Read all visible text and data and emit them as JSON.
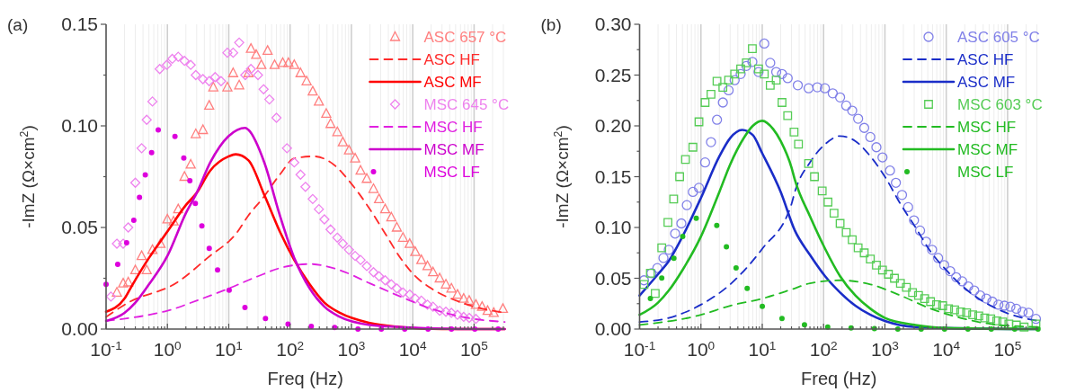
{
  "chart_data": [
    {
      "type": "line",
      "title": "(a)",
      "xlabel": "Freq (Hz)",
      "ylabel": "-ImZ (Ω×cm$^{2}$)",
      "log": "x",
      "grid": "x",
      "legend": "top right",
      "xlim": [
        0.1,
        316000
      ],
      "ylim": [
        0,
        0.15
      ],
      "xticks": [
        {
          "value": 0.1,
          "label": "10$^{-1}$"
        },
        {
          "value": 0.2,
          "label": null
        },
        {
          "value": 0.3,
          "label": null
        },
        {
          "value": 0.4,
          "label": null
        },
        {
          "value": 0.5,
          "label": null
        },
        {
          "value": 0.6,
          "label": null
        },
        {
          "value": 0.7,
          "label": null
        },
        {
          "value": 0.8,
          "label": null
        },
        {
          "value": 0.9,
          "label": null
        },
        {
          "value": 1,
          "label": "10$^{0}$"
        },
        {
          "value": 2,
          "label": null
        },
        {
          "value": 3,
          "label": null
        },
        {
          "value": 4,
          "label": null
        },
        {
          "value": 5,
          "label": null
        },
        {
          "value": 6,
          "label": null
        },
        {
          "value": 7,
          "label": null
        },
        {
          "value": 8,
          "label": null
        },
        {
          "value": 9,
          "label": null
        },
        {
          "value": 10,
          "label": "10$^{1}$"
        },
        {
          "value": 20,
          "label": null
        },
        {
          "value": 30,
          "label": null
        },
        {
          "value": 40,
          "label": null
        },
        {
          "value": 50,
          "label": null
        },
        {
          "value": 60,
          "label": null
        },
        {
          "value": 70,
          "label": null
        },
        {
          "value": 80,
          "label": null
        },
        {
          "value": 90,
          "label": null
        },
        {
          "value": 100,
          "label": "10$^{2}$"
        },
        {
          "value": 200,
          "label": null
        },
        {
          "value": 300,
          "label": null
        },
        {
          "value": 400,
          "label": null
        },
        {
          "value": 500,
          "label": null
        },
        {
          "value": 600,
          "label": null
        },
        {
          "value": 700,
          "label": null
        },
        {
          "value": 800,
          "label": null
        },
        {
          "value": 900,
          "label": null
        },
        {
          "value": 1000,
          "label": "10$^{3}$"
        },
        {
          "value": 2000,
          "label": null
        },
        {
          "value": 3000,
          "label": null
        },
        {
          "value": 4000,
          "label": null
        },
        {
          "value": 5000,
          "label": null
        },
        {
          "value": 6000,
          "label": null
        },
        {
          "value": 7000,
          "label": null
        },
        {
          "value": 8000,
          "label": null
        },
        {
          "value": 9000,
          "label": null
        },
        {
          "value": 10000,
          "label": "10$^{4}$"
        },
        {
          "value": 20000,
          "label": null
        },
        {
          "value": 30000,
          "label": null
        },
        {
          "value": 40000,
          "label": null
        },
        {
          "value": 50000,
          "label": null
        },
        {
          "value": 60000,
          "label": null
        },
        {
          "value": 70000,
          "label": null
        },
        {
          "value": 80000,
          "label": null
        },
        {
          "value": 90000,
          "label": null
        },
        {
          "value": 100000,
          "label": "10$^{5}$"
        },
        {
          "value": 200000,
          "label": null
        },
        {
          "value": 300000,
          "label": null
        }
      ],
      "yticks": [
        {
          "value": 0,
          "label": "0.00"
        },
        {
          "value": 0.025,
          "label": null
        },
        {
          "value": 0.05,
          "label": "0.05"
        },
        {
          "value": 0.075,
          "label": null
        },
        {
          "value": 0.1,
          "label": "0.10"
        },
        {
          "value": 0.125,
          "label": null
        },
        {
          "value": 0.15,
          "label": "0.15"
        }
      ],
      "series": [
        {
          "name": "ASC 657 °C",
          "type": "scatter",
          "marker": "triangle",
          "color": "#ff7f7f",
          "x": [
            0.15,
            0.19,
            0.23,
            0.3,
            0.38,
            0.46,
            0.57,
            0.77,
            1.0,
            1.26,
            1.5,
            1.9,
            2.4,
            2.9,
            3.8,
            4.8,
            5.6,
            9.5,
            11.8,
            14.8,
            21,
            23,
            28,
            34,
            43,
            56,
            76,
            94,
            117,
            148,
            186,
            234,
            295,
            389,
            457,
            589,
            724,
            912,
            1150,
            1410,
            1780,
            2290,
            2820,
            3550,
            4470,
            5500,
            6920,
            8910,
            11000,
            13800,
            17400,
            21400,
            27500,
            34700,
            42700,
            53700,
            67600,
            83200,
            107000,
            135000,
            166000,
            209000,
            295000
          ],
          "values": [
            0.018,
            0.0225,
            0.023,
            0.029,
            0.036,
            0.029,
            0.039,
            0.042,
            0.054,
            0.053,
            0.059,
            0.075,
            0.081,
            0.096,
            0.098,
            0.11,
            0.119,
            0.119,
            0.126,
            0.12,
            0.126,
            0.138,
            0.135,
            0.13,
            0.137,
            0.13,
            0.131,
            0.131,
            0.13,
            0.126,
            0.122,
            0.117,
            0.112,
            0.106,
            0.101,
            0.097,
            0.092,
            0.088,
            0.084,
            0.078,
            0.074,
            0.069,
            0.064,
            0.059,
            0.055,
            0.05,
            0.045,
            0.042,
            0.038,
            0.034,
            0.031,
            0.028,
            0.025,
            0.022,
            0.02,
            0.017,
            0.015,
            0.014,
            0.012,
            0.011,
            0.009,
            0.008,
            0.01
          ]
        },
        {
          "name": "ASC HF",
          "type": "line",
          "line_style": "dashed",
          "color": "#ff2a2a",
          "x": [
            0.1,
            0.23,
            1.45,
            4.5,
            14,
            21,
            35,
            68,
            117,
            245,
            513,
            912,
            2000,
            3550,
            6300,
            11000,
            20000,
            63000,
            316000
          ],
          "values": [
            0.006,
            0.013,
            0.023,
            0.035,
            0.048,
            0.056,
            0.064,
            0.076,
            0.084,
            0.085,
            0.081,
            0.073,
            0.059,
            0.047,
            0.035,
            0.026,
            0.02,
            0.013,
            0.008
          ]
        },
        {
          "name": "ASC MF",
          "type": "line",
          "line_style": "solid",
          "color": "#ff0000",
          "x": [
            0.1,
            0.2,
            0.26,
            0.5,
            1,
            2,
            3,
            5,
            10,
            13,
            21,
            38,
            68,
            117,
            209,
            363,
            646,
            2000,
            6300,
            30000,
            316000
          ],
          "values": [
            0.0085,
            0.015,
            0.021,
            0.035,
            0.048,
            0.061,
            0.067,
            0.078,
            0.085,
            0.086,
            0.083,
            0.066,
            0.048,
            0.034,
            0.022,
            0.013,
            0.008,
            0.003,
            0.001,
            0,
            0
          ]
        },
        {
          "name": "MSC 645 °C",
          "type": "scatter",
          "marker": "diamond",
          "color": "#ee82ee",
          "x": [
            0.12,
            0.15,
            0.19,
            0.23,
            0.3,
            0.38,
            0.46,
            0.57,
            0.75,
            0.98,
            1.2,
            1.5,
            1.9,
            2.4,
            2.9,
            3.8,
            4.8,
            6.0,
            7.5,
            9.5,
            11.8,
            14.8,
            18.6,
            23,
            30,
            37,
            46,
            60,
            89,
            117,
            148,
            178,
            234,
            295,
            363,
            457,
            589,
            724,
            912,
            1150,
            1410,
            1780,
            2290,
            2820,
            3550,
            4470,
            5500,
            6920,
            8910,
            11000,
            13800,
            17400,
            21400,
            27500,
            34700,
            42700,
            53700,
            67600,
            83200,
            107000
          ],
          "values": [
            0.016,
            0.042,
            0.042,
            0.05,
            0.072,
            0.089,
            0.103,
            0.112,
            0.128,
            0.13,
            0.133,
            0.134,
            0.132,
            0.13,
            0.125,
            0.123,
            0.122,
            0.124,
            0.122,
            0.136,
            0.136,
            0.141,
            0.125,
            0.128,
            0.125,
            0.118,
            0.113,
            0.104,
            0.089,
            0.082,
            0.076,
            0.07,
            0.064,
            0.059,
            0.054,
            0.049,
            0.045,
            0.042,
            0.039,
            0.036,
            0.034,
            0.031,
            0.028,
            0.026,
            0.024,
            0.022,
            0.02,
            0.018,
            0.017,
            0.015,
            0.014,
            0.012,
            0.011,
            0.009,
            0.0085,
            0.008,
            0.007,
            0.006,
            0.0055,
            0.005
          ]
        },
        {
          "name": "MSC HF",
          "type": "line",
          "line_style": "dashed",
          "color": "#e020e0",
          "x": [
            0.1,
            0.5,
            1,
            3,
            10,
            30,
            68,
            209,
            646,
            2000,
            6300,
            20000,
            63000,
            316000
          ],
          "values": [
            0.004,
            0.007,
            0.009,
            0.014,
            0.02,
            0.026,
            0.03,
            0.032,
            0.029,
            0.0225,
            0.016,
            0.01,
            0.006,
            0.0035
          ]
        },
        {
          "name": "MSC MF",
          "type": "line",
          "line_style": "solid",
          "color": "#cc00cc",
          "x": [
            0.1,
            0.2,
            0.3,
            0.5,
            1,
            2,
            3,
            5,
            10,
            18.6,
            21,
            38,
            68,
            117,
            209,
            363,
            646,
            2000,
            6300,
            100000,
            316000
          ],
          "values": [
            0.004,
            0.008,
            0.013,
            0.022,
            0.036,
            0.057,
            0.067,
            0.082,
            0.095,
            0.099,
            0.098,
            0.082,
            0.056,
            0.035,
            0.02,
            0.011,
            0.006,
            0.002,
            0.001,
            0,
            0
          ]
        },
        {
          "name": "MSC LF",
          "type": "line",
          "line_style": "dotted",
          "color": "#dd00dd",
          "x": [
            0.1,
            0.19,
            0.28,
            0.38,
            0.52,
            0.8,
            1.5,
            2.15,
            2.9,
            4.2,
            6.6,
            13,
            35,
            117,
            400,
            1600,
            10000,
            316000
          ],
          "values": [
            0.022,
            0.038,
            0.053,
            0.069,
            0.084,
            0.1,
            0.092,
            0.077,
            0.061,
            0.045,
            0.029,
            0.015,
            0.006,
            0.002,
            0.001,
            0,
            0,
            0
          ]
        }
      ]
    },
    {
      "type": "line",
      "title": "(b)",
      "xlabel": "Freq (Hz)",
      "ylabel": "-ImZ (Ω×cm$^{2}$)",
      "log": "x",
      "grid": "x",
      "legend": "top right",
      "xlim": [
        0.1,
        316000
      ],
      "ylim": [
        0,
        0.3
      ],
      "xticks": [
        {
          "value": 0.1,
          "label": "10$^{-1}$"
        },
        {
          "value": 0.2,
          "label": null
        },
        {
          "value": 0.3,
          "label": null
        },
        {
          "value": 0.4,
          "label": null
        },
        {
          "value": 0.5,
          "label": null
        },
        {
          "value": 0.6,
          "label": null
        },
        {
          "value": 0.7,
          "label": null
        },
        {
          "value": 0.8,
          "label": null
        },
        {
          "value": 0.9,
          "label": null
        },
        {
          "value": 1,
          "label": "10$^{0}$"
        },
        {
          "value": 2,
          "label": null
        },
        {
          "value": 3,
          "label": null
        },
        {
          "value": 4,
          "label": null
        },
        {
          "value": 5,
          "label": null
        },
        {
          "value": 6,
          "label": null
        },
        {
          "value": 7,
          "label": null
        },
        {
          "value": 8,
          "label": null
        },
        {
          "value": 9,
          "label": null
        },
        {
          "value": 10,
          "label": "10$^{1}$"
        },
        {
          "value": 20,
          "label": null
        },
        {
          "value": 30,
          "label": null
        },
        {
          "value": 40,
          "label": null
        },
        {
          "value": 50,
          "label": null
        },
        {
          "value": 60,
          "label": null
        },
        {
          "value": 70,
          "label": null
        },
        {
          "value": 80,
          "label": null
        },
        {
          "value": 90,
          "label": null
        },
        {
          "value": 100,
          "label": "10$^{2}$"
        },
        {
          "value": 200,
          "label": null
        },
        {
          "value": 300,
          "label": null
        },
        {
          "value": 400,
          "label": null
        },
        {
          "value": 500,
          "label": null
        },
        {
          "value": 600,
          "label": null
        },
        {
          "value": 700,
          "label": null
        },
        {
          "value": 800,
          "label": null
        },
        {
          "value": 900,
          "label": null
        },
        {
          "value": 1000,
          "label": "10$^{3}$"
        },
        {
          "value": 2000,
          "label": null
        },
        {
          "value": 3000,
          "label": null
        },
        {
          "value": 4000,
          "label": null
        },
        {
          "value": 5000,
          "label": null
        },
        {
          "value": 6000,
          "label": null
        },
        {
          "value": 7000,
          "label": null
        },
        {
          "value": 8000,
          "label": null
        },
        {
          "value": 9000,
          "label": null
        },
        {
          "value": 10000,
          "label": "10$^{4}$"
        },
        {
          "value": 20000,
          "label": null
        },
        {
          "value": 30000,
          "label": null
        },
        {
          "value": 40000,
          "label": null
        },
        {
          "value": 50000,
          "label": null
        },
        {
          "value": 60000,
          "label": null
        },
        {
          "value": 70000,
          "label": null
        },
        {
          "value": 80000,
          "label": null
        },
        {
          "value": 90000,
          "label": null
        },
        {
          "value": 100000,
          "label": "10$^{5}$"
        },
        {
          "value": 200000,
          "label": null
        },
        {
          "value": 300000,
          "label": null
        }
      ],
      "yticks": [
        {
          "value": 0,
          "label": "0.00"
        },
        {
          "value": 0.025,
          "label": null
        },
        {
          "value": 0.05,
          "label": "0.05"
        },
        {
          "value": 0.075,
          "label": null
        },
        {
          "value": 0.1,
          "label": "0.10"
        },
        {
          "value": 0.125,
          "label": null
        },
        {
          "value": 0.15,
          "label": "0.15"
        },
        {
          "value": 0.175,
          "label": null
        },
        {
          "value": 0.2,
          "label": "0.20"
        },
        {
          "value": 0.225,
          "label": null
        },
        {
          "value": 0.25,
          "label": "0.25"
        },
        {
          "value": 0.275,
          "label": null
        },
        {
          "value": 0.3,
          "label": "0.30"
        }
      ],
      "series": [
        {
          "name": "ASC 605 °C",
          "type": "scatter",
          "marker": "circle",
          "color": "#8080e8",
          "x": [
            0.118,
            0.156,
            0.195,
            0.245,
            0.3,
            0.38,
            0.48,
            0.59,
            0.74,
            0.93,
            1.17,
            1.46,
            1.83,
            2.28,
            2.83,
            3.55,
            4.45,
            5.5,
            6.9,
            8.7,
            10.8,
            13.5,
            16.9,
            21,
            26,
            38,
            57,
            79,
            105,
            141,
            186,
            234,
            293,
            366,
            460,
            578,
            727,
            913,
            1210,
            1510,
            1900,
            2390,
            2980,
            3740,
            4690,
            5880,
            7370,
            9250,
            11600,
            14500,
            18200,
            22800,
            28600,
            35900,
            45000,
            56500,
            70900,
            88900,
            111000,
            139000,
            175000,
            219000,
            290000
          ],
          "values": [
            0.048,
            0.055,
            0.06,
            0.07,
            0.078,
            0.094,
            0.104,
            0.122,
            0.135,
            0.139,
            0.164,
            0.184,
            0.206,
            0.223,
            0.235,
            0.245,
            0.251,
            0.259,
            0.263,
            0.253,
            0.281,
            0.262,
            0.253,
            0.251,
            0.247,
            0.24,
            0.237,
            0.238,
            0.237,
            0.232,
            0.228,
            0.22,
            0.215,
            0.207,
            0.198,
            0.189,
            0.179,
            0.169,
            0.156,
            0.144,
            0.132,
            0.12,
            0.107,
            0.097,
            0.086,
            0.078,
            0.07,
            0.063,
            0.057,
            0.051,
            0.047,
            0.042,
            0.038,
            0.033,
            0.03,
            0.027,
            0.024,
            0.023,
            0.022,
            0.02,
            0.017,
            0.016,
            0.01
          ]
        },
        {
          "name": "ASC HF",
          "type": "line",
          "line_style": "dashed",
          "color": "#1a2dc8",
          "x": [
            0.1,
            0.3,
            1,
            3,
            10,
            30,
            34,
            60,
            106,
            186,
            330,
            580,
            1000,
            1800,
            3160,
            5600,
            10000,
            17000,
            30000,
            53000,
            95000,
            316000
          ],
          "values": [
            0.007,
            0.011,
            0.024,
            0.044,
            0.079,
            0.123,
            0.135,
            0.164,
            0.182,
            0.19,
            0.185,
            0.17,
            0.15,
            0.123,
            0.1,
            0.076,
            0.058,
            0.044,
            0.032,
            0.023,
            0.016,
            0.008
          ]
        },
        {
          "name": "ASC MF",
          "type": "line",
          "line_style": "solid",
          "color": "#1a2dc8",
          "x": [
            0.1,
            0.2,
            0.3,
            0.5,
            1,
            2,
            3,
            4.7,
            7,
            10,
            20,
            34,
            60,
            106,
            186,
            330,
            580,
            1000,
            3160,
            10000,
            316000
          ],
          "values": [
            0.033,
            0.054,
            0.067,
            0.091,
            0.129,
            0.17,
            0.188,
            0.196,
            0.191,
            0.173,
            0.135,
            0.097,
            0.073,
            0.052,
            0.036,
            0.023,
            0.014,
            0.008,
            0.002,
            0.001,
            0
          ]
        },
        {
          "name": "MSC 603 °C",
          "type": "scatter",
          "marker": "square",
          "color": "#55cc55",
          "x": [
            0.118,
            0.15,
            0.18,
            0.23,
            0.29,
            0.36,
            0.45,
            0.56,
            0.74,
            0.93,
            1.17,
            1.46,
            1.83,
            2.28,
            2.83,
            3.55,
            4.45,
            5.5,
            6.9,
            8.7,
            10.8,
            13.5,
            16.9,
            21,
            26,
            33,
            39,
            57,
            71,
            95,
            118,
            148,
            186,
            234,
            293,
            366,
            460,
            578,
            727,
            913,
            1140,
            1430,
            1790,
            2240,
            2820,
            3530,
            4440,
            5550,
            6960,
            8730,
            10900,
            13700,
            17200,
            21500,
            27000,
            33900,
            42400,
            53200,
            66700,
            83600,
            105000,
            139000,
            186000,
            290000
          ],
          "values": [
            0.044,
            0.055,
            0.035,
            0.08,
            0.105,
            0.128,
            0.15,
            0.167,
            0.179,
            0.204,
            0.223,
            0.231,
            0.244,
            0.238,
            0.245,
            0.251,
            0.256,
            0.262,
            0.276,
            0.256,
            0.251,
            0.24,
            0.245,
            0.223,
            0.21,
            0.194,
            0.182,
            0.163,
            0.15,
            0.136,
            0.125,
            0.114,
            0.104,
            0.095,
            0.088,
            0.08,
            0.075,
            0.069,
            0.063,
            0.058,
            0.054,
            0.05,
            0.045,
            0.041,
            0.036,
            0.033,
            0.03,
            0.027,
            0.024,
            0.023,
            0.02,
            0.019,
            0.017,
            0.016,
            0.014,
            0.013,
            0.011,
            0.01,
            0.008,
            0.007,
            0.005,
            0.004,
            0.002,
            0.005
          ]
        },
        {
          "name": "MSC HF",
          "type": "line",
          "line_style": "dashed",
          "color": "#22bb22",
          "x": [
            0.1,
            1,
            3,
            10,
            30,
            60,
            186,
            580,
            1800,
            5600,
            17000,
            53000,
            316000
          ],
          "values": [
            0.004,
            0.014,
            0.023,
            0.03,
            0.039,
            0.045,
            0.048,
            0.044,
            0.033,
            0.02,
            0.011,
            0.005,
            0.002
          ]
        },
        {
          "name": "MSC MF",
          "type": "line",
          "line_style": "solid",
          "color": "#22bb22",
          "x": [
            0.1,
            0.2,
            0.3,
            0.5,
            1,
            2,
            3,
            5,
            7,
            10,
            15,
            20,
            30,
            34,
            60,
            106,
            186,
            330,
            580,
            1000,
            3160,
            10000,
            316000
          ],
          "values": [
            0.014,
            0.026,
            0.038,
            0.058,
            0.091,
            0.135,
            0.162,
            0.188,
            0.2,
            0.205,
            0.197,
            0.185,
            0.159,
            0.147,
            0.111,
            0.079,
            0.052,
            0.033,
            0.02,
            0.011,
            0.004,
            0.001,
            0
          ]
        },
        {
          "name": "MSC LF",
          "type": "line",
          "line_style": "dotted",
          "color": "#22bb22",
          "x": [
            0.15,
            0.2,
            0.38,
            0.63,
            1.0,
            1.6,
            2.7,
            4.7,
            10.2,
            31,
            111,
            400,
            1600,
            10000,
            316000
          ],
          "values": [
            0.03,
            0.044,
            0.072,
            0.103,
            0.11,
            0.106,
            0.079,
            0.048,
            0.022,
            0.007,
            0.002,
            0.001,
            0,
            0,
            0
          ]
        }
      ]
    }
  ]
}
